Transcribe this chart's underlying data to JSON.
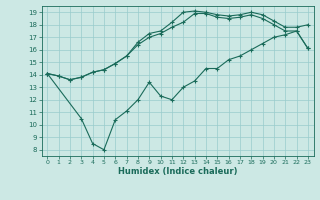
{
  "xlabel": "Humidex (Indice chaleur)",
  "bg_color": "#cce8e4",
  "line_color": "#1a6b5a",
  "grid_color": "#99cccc",
  "xlim": [
    -0.5,
    23.5
  ],
  "ylim": [
    7.5,
    19.5
  ],
  "xticks": [
    0,
    1,
    2,
    3,
    4,
    5,
    6,
    7,
    8,
    9,
    10,
    11,
    12,
    13,
    14,
    15,
    16,
    17,
    18,
    19,
    20,
    21,
    22,
    23
  ],
  "yticks": [
    8,
    9,
    10,
    11,
    12,
    13,
    14,
    15,
    16,
    17,
    18,
    19
  ],
  "line1_x": [
    0,
    1,
    2,
    3,
    4,
    5,
    6,
    7,
    8,
    9,
    10,
    11,
    12,
    13,
    14,
    15,
    16,
    17,
    18,
    19,
    20,
    21,
    22,
    23
  ],
  "line1_y": [
    14.1,
    13.9,
    13.6,
    13.8,
    14.2,
    14.4,
    14.9,
    15.5,
    16.6,
    17.3,
    17.5,
    18.2,
    19.0,
    19.1,
    19.0,
    18.8,
    18.7,
    18.8,
    19.0,
    18.8,
    18.3,
    17.8,
    17.8,
    18.0
  ],
  "line2_x": [
    0,
    1,
    2,
    3,
    4,
    5,
    6,
    7,
    8,
    9,
    10,
    11,
    12,
    13,
    14,
    15,
    16,
    17,
    18,
    19,
    20,
    21,
    22,
    23
  ],
  "line2_y": [
    14.1,
    13.9,
    13.6,
    13.8,
    14.2,
    14.4,
    14.9,
    15.5,
    16.4,
    17.0,
    17.3,
    17.8,
    18.2,
    18.9,
    18.9,
    18.6,
    18.5,
    18.6,
    18.8,
    18.5,
    18.0,
    17.5,
    17.5,
    16.1
  ],
  "line3_x": [
    0,
    3,
    4,
    5,
    6,
    7,
    8,
    9,
    10,
    11,
    12,
    13,
    14,
    15,
    16,
    17,
    18,
    19,
    20,
    21,
    22,
    23
  ],
  "line3_y": [
    14.1,
    10.5,
    8.5,
    8.0,
    10.4,
    11.1,
    12.0,
    13.4,
    12.3,
    12.0,
    13.0,
    13.5,
    14.5,
    14.5,
    15.2,
    15.5,
    16.0,
    16.5,
    17.0,
    17.2,
    17.5,
    16.1
  ]
}
